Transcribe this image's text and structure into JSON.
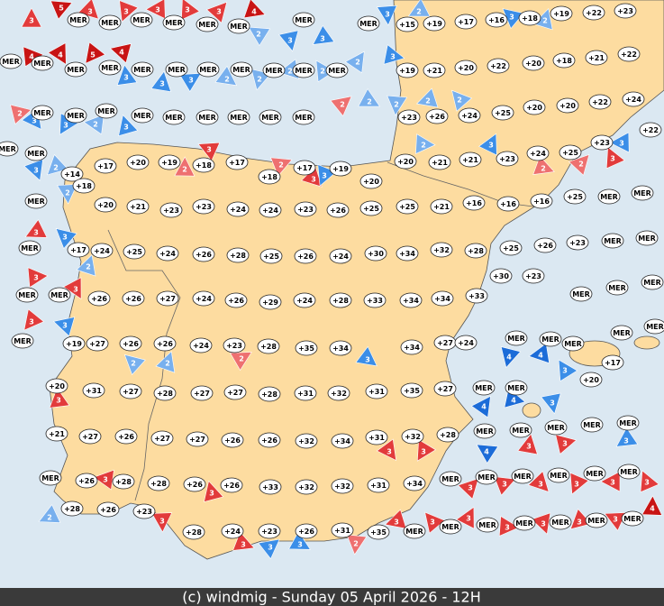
{
  "footer": "(c) windmig - Sunday 05 April 2026 - 12H",
  "stations": [
    [
      "MER",
      "MER",
      "MER",
      "MER",
      "MER",
      "MER",
      "MER",
      "MER",
      "+15",
      "+19",
      "+17",
      "+16",
      "+18",
      "+19",
      "+22",
      "+23"
    ],
    [
      "MER",
      "MER",
      "MER",
      "MER",
      "MER",
      "MER",
      "MER",
      "MER",
      "MER",
      "MER",
      "MER",
      "+19",
      "+21",
      "+20",
      "+22",
      "+20",
      "+18",
      "+21",
      "+22"
    ],
    [
      "MER",
      "MER",
      "MER",
      "MER",
      "MER",
      "MER",
      "MER",
      "MER",
      "MER",
      "+23",
      "+26",
      "+24",
      "+25",
      "+20",
      "+20",
      "+22",
      "+24"
    ],
    [
      "MER",
      "MER",
      "+14",
      "+17",
      "+20",
      "+19",
      "+18",
      "+17",
      "+18",
      "+17",
      "+19",
      "+20",
      "+20",
      "+21",
      "+21",
      "+23",
      "+24",
      "+25",
      "+23",
      "+22"
    ],
    [
      "MER",
      "+18",
      "+20",
      "+21",
      "+23",
      "+23",
      "+24",
      "+24",
      "+23",
      "+26",
      "+25",
      "+25",
      "+21",
      "+16",
      "+16",
      "+16",
      "+25",
      "MER",
      "MER"
    ],
    [
      "MER",
      "+17",
      "+24",
      "+25",
      "+24",
      "+26",
      "+28",
      "+25",
      "+26",
      "+24",
      "+30",
      "+34",
      "+32",
      "+28",
      "+25",
      "+26",
      "+23",
      "MER",
      "MER"
    ],
    [
      "MER",
      "MER",
      "+26",
      "+26",
      "+27",
      "+24",
      "+26",
      "+29",
      "+24",
      "+28",
      "+33",
      "+34",
      "+34",
      "+33",
      "+30",
      "+23",
      "MER",
      "MER",
      "MER"
    ],
    [
      "MER",
      "+19",
      "+27",
      "+26",
      "+26",
      "+24",
      "+23",
      "+28",
      "+35",
      "+34",
      "+34",
      "+27",
      "+24",
      "MER",
      "MER",
      "MER",
      "MER",
      "MER",
      "+17",
      "+20"
    ],
    [
      "+20",
      "+31",
      "+27",
      "+28",
      "+27",
      "+27",
      "+28",
      "+31",
      "+32",
      "+31",
      "+35",
      "+27",
      "MER",
      "MER"
    ],
    [
      "+21",
      "+27",
      "+26",
      "+27",
      "+27",
      "+26",
      "+26",
      "+32",
      "+34",
      "+31",
      "+32",
      "+28",
      "MER",
      "MER",
      "MER",
      "MER",
      "MER"
    ],
    [
      "MER",
      "+26",
      "+28",
      "+28",
      "+26",
      "+26",
      "+33",
      "+32",
      "+32",
      "+31",
      "+34",
      "MER",
      "MER",
      "MER",
      "MER",
      "MER",
      "MER"
    ],
    [
      "+28",
      "+26",
      "+23",
      "+28",
      "+24",
      "+23",
      "+26",
      "+31",
      "+35",
      "MER",
      "MER",
      "MER",
      "MER",
      "MER",
      "MER",
      "MER"
    ]
  ],
  "winds": [
    {
      "label": "3",
      "color": "#e23b3b"
    },
    {
      "label": "5",
      "color": "#c81414"
    },
    {
      "label": "3",
      "color": "#e23b3b"
    },
    {
      "label": "3",
      "color": "#e23b3b"
    },
    {
      "label": "3",
      "color": "#e23b3b"
    },
    {
      "label": "3",
      "color": "#e23b3b"
    },
    {
      "label": "3",
      "color": "#e23b3b"
    },
    {
      "label": "4",
      "color": "#c81414"
    },
    {
      "label": "3",
      "color": "#3b8ee8"
    },
    {
      "label": "2",
      "color": "#78b0ee"
    },
    {
      "label": "3",
      "color": "#3b8ee8"
    },
    {
      "label": "2",
      "color": "#78b0ee"
    },
    {
      "label": "4",
      "color": "#c81414"
    },
    {
      "label": "4",
      "color": "#c81414"
    },
    {
      "label": "5",
      "color": "#c81414"
    },
    {
      "label": "4",
      "color": "#c81414"
    },
    {
      "label": "3",
      "color": "#3b8ee8"
    },
    {
      "label": "3",
      "color": "#3b8ee8"
    },
    {
      "label": "2",
      "color": "#78b0ee"
    },
    {
      "label": "2",
      "color": "#78b0ee"
    },
    {
      "label": "2",
      "color": "#78b0ee"
    },
    {
      "label": "2",
      "color": "#78b0ee"
    },
    {
      "label": "2",
      "color": "#78b0ee"
    },
    {
      "label": "3",
      "color": "#3b8ee8"
    },
    {
      "label": "3",
      "color": "#3b8ee8"
    },
    {
      "label": "3",
      "color": "#3b8ee8"
    },
    {
      "label": "2",
      "color": "#78b0ee"
    },
    {
      "label": "3",
      "color": "#3b8ee8"
    },
    {
      "label": "2",
      "color": "#ee7070"
    },
    {
      "label": "3",
      "color": "#3b8ee8"
    },
    {
      "label": "3",
      "color": "#3b8ee8"
    },
    {
      "label": "2",
      "color": "#78b0ee"
    },
    {
      "label": "3",
      "color": "#3b8ee8"
    },
    {
      "label": "2",
      "color": "#ee7070"
    },
    {
      "label": "2",
      "color": "#78b0ee"
    },
    {
      "label": "2",
      "color": "#78b0ee"
    },
    {
      "label": "2",
      "color": "#78b0ee"
    },
    {
      "label": "2",
      "color": "#78b0ee"
    },
    {
      "label": "3",
      "color": "#3b8ee8"
    },
    {
      "label": "2",
      "color": "#78b0ee"
    },
    {
      "label": "3",
      "color": "#3b8ee8"
    },
    {
      "label": "2",
      "color": "#78b0ee"
    },
    {
      "label": "3",
      "color": "#e23b3b"
    },
    {
      "label": "2",
      "color": "#ee7070"
    },
    {
      "label": "2",
      "color": "#ee7070"
    },
    {
      "label": "3",
      "color": "#e23b3b"
    },
    {
      "label": "3",
      "color": "#3b8ee8"
    },
    {
      "label": "3",
      "color": "#3b8ee8"
    },
    {
      "label": "3",
      "color": "#e23b3b"
    },
    {
      "label": "2",
      "color": "#ee7070"
    },
    {
      "label": "2",
      "color": "#ee7070"
    },
    {
      "label": "2",
      "color": "#78b0ee"
    },
    {
      "label": "3",
      "color": "#e23b3b"
    },
    {
      "label": "3",
      "color": "#3b8ee8"
    },
    {
      "label": "2",
      "color": "#78b0ee"
    },
    {
      "label": "3",
      "color": "#e23b3b"
    },
    {
      "label": "3",
      "color": "#e23b3b"
    },
    {
      "label": "3",
      "color": "#e23b3b"
    },
    {
      "label": "3",
      "color": "#3b8ee8"
    },
    {
      "label": "3",
      "color": "#e23b3b"
    },
    {
      "label": "2",
      "color": "#ee7070"
    },
    {
      "label": "3",
      "color": "#3b8ee8"
    },
    {
      "label": "4",
      "color": "#1c6cd8"
    },
    {
      "label": "4",
      "color": "#1c6cd8"
    },
    {
      "label": "3",
      "color": "#3b8ee8"
    },
    {
      "label": "4",
      "color": "#1c6cd8"
    },
    {
      "label": "4",
      "color": "#1c6cd8"
    },
    {
      "label": "3",
      "color": "#3b8ee8"
    },
    {
      "label": "3",
      "color": "#3b8ee8"
    },
    {
      "label": "4",
      "color": "#1c6cd8"
    },
    {
      "label": "3",
      "color": "#e23b3b"
    },
    {
      "label": "3",
      "color": "#e23b3b"
    },
    {
      "label": "3",
      "color": "#e23b3b"
    },
    {
      "label": "3",
      "color": "#e23b3b"
    },
    {
      "label": "3",
      "color": "#e23b3b"
    },
    {
      "label": "3",
      "color": "#e23b3b"
    },
    {
      "label": "3",
      "color": "#3b8ee8"
    },
    {
      "label": "3",
      "color": "#3b8ee8"
    },
    {
      "label": "2",
      "color": "#ee7070"
    },
    {
      "label": "3",
      "color": "#e23b3b"
    },
    {
      "label": "3",
      "color": "#e23b3b"
    },
    {
      "label": "3",
      "color": "#e23b3b"
    },
    {
      "label": "3",
      "color": "#e23b3b"
    },
    {
      "label": "3",
      "color": "#e23b3b"
    },
    {
      "label": "3",
      "color": "#e23b3b"
    },
    {
      "label": "3",
      "color": "#e23b3b"
    },
    {
      "label": "4",
      "color": "#c81414"
    },
    {
      "label": "3",
      "color": "#e23b3b"
    },
    {
      "label": "3",
      "color": "#e23b3b"
    },
    {
      "label": "3",
      "color": "#e23b3b"
    },
    {
      "label": "3",
      "color": "#e23b3b"
    },
    {
      "label": "3",
      "color": "#e23b3b"
    },
    {
      "label": "3",
      "color": "#e23b3b"
    },
    {
      "label": "3",
      "color": "#e23b3b"
    },
    {
      "label": "3",
      "color": "#e23b3b"
    },
    {
      "label": "2",
      "color": "#78b0ee"
    },
    {
      "label": "2",
      "color": "#78b0ee"
    },
    {
      "label": "2",
      "color": "#78b0ee"
    }
  ]
}
